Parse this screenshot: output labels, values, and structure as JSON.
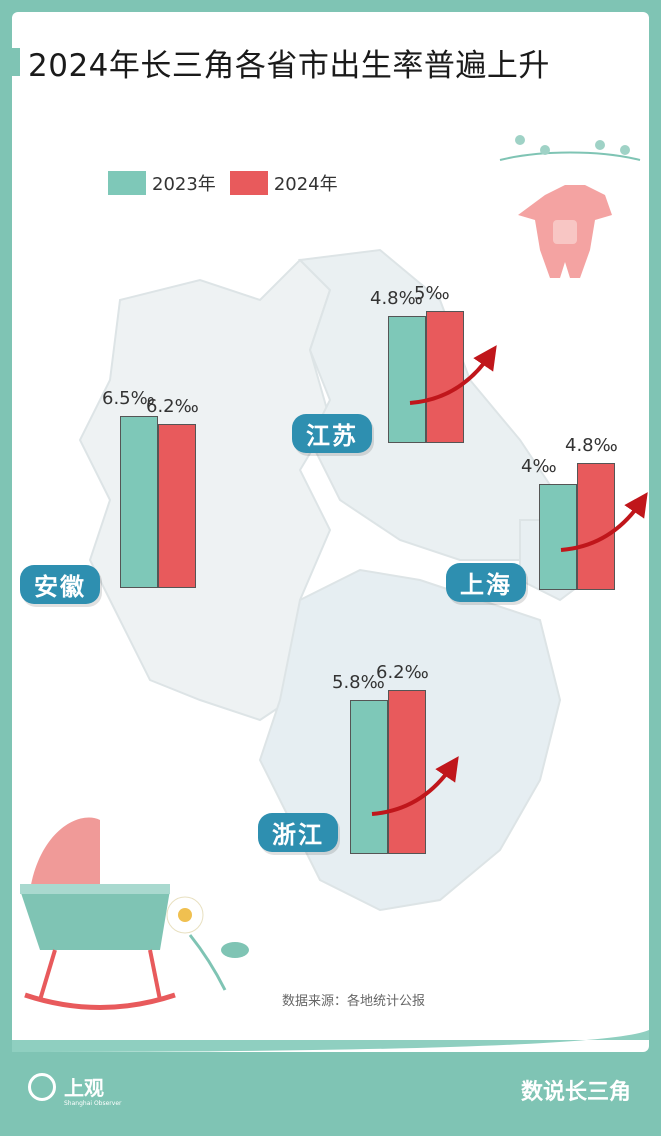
{
  "title": "2024年长三角各省市出生率普遍上升",
  "legend": [
    {
      "label": "2023年",
      "color": "#7ec8b8"
    },
    {
      "label": "2024年",
      "color": "#e85a5c"
    }
  ],
  "chart_data": {
    "type": "bar",
    "title": "2024年长三角各省市出生率普遍上升",
    "unit": "‰",
    "categories": [
      "安徽",
      "江苏",
      "上海",
      "浙江"
    ],
    "series": [
      {
        "name": "2023年",
        "values": [
          6.5,
          4.8,
          4,
          5.8
        ]
      },
      {
        "name": "2024年",
        "values": [
          6.2,
          5,
          4.8,
          6.2
        ]
      }
    ],
    "value_labels": {
      "2023年": [
        "6.5‰",
        "4.8‰",
        "4‰",
        "5.8‰"
      ],
      "2024年": [
        "6.2‰",
        "5‰",
        "4.8‰",
        "6.2‰"
      ]
    },
    "trend_arrows": [
      "江苏",
      "上海",
      "浙江"
    ]
  },
  "source": "数据来源：各地统计公报",
  "footer": {
    "logo_text": "上观",
    "logo_sub": "Shanghai Observer",
    "right_text": "数说长三角"
  }
}
